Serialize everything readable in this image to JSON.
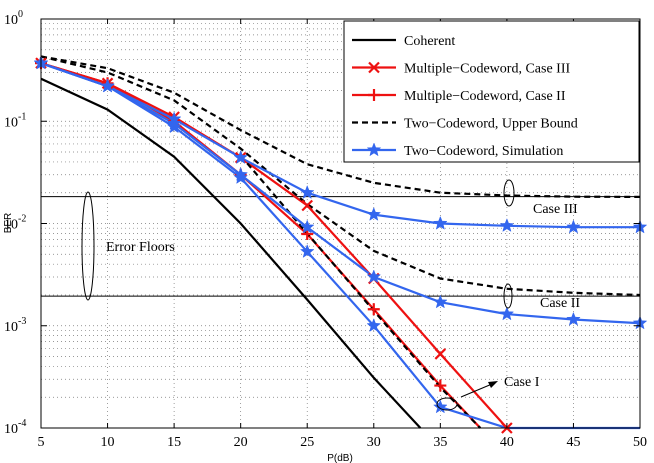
{
  "chart_data": {
    "type": "line",
    "title": "",
    "xlabel": "P(dB)",
    "ylabel": "BER",
    "xlim": [
      5,
      50
    ],
    "ylim": [
      0.0001,
      1
    ],
    "yscale": "log",
    "grid": true,
    "legend_position": "top-right",
    "x_ticks": [
      "5",
      "10",
      "15",
      "20",
      "25",
      "30",
      "35",
      "40",
      "45",
      "50"
    ],
    "y_ticks": [
      {
        "base": "10",
        "exp": "0"
      },
      {
        "base": "10",
        "exp": "-1"
      },
      {
        "base": "10",
        "exp": "-2"
      },
      {
        "base": "10",
        "exp": "-3"
      },
      {
        "base": "10",
        "exp": "-4"
      }
    ],
    "series": [
      {
        "name": "Coherent",
        "color": "#000000",
        "dash": "solid",
        "marker": "none",
        "x": [
          5,
          10,
          15,
          20,
          25,
          30,
          33.5
        ],
        "y": [
          0.26,
          0.13,
          0.045,
          0.01,
          0.0018,
          0.00031,
          0.0001
        ]
      },
      {
        "name": "Multiple−Codeword, Case III",
        "color": "#ee1111",
        "dash": "solid",
        "marker": "x",
        "x": [
          5,
          10,
          15,
          20,
          25,
          30,
          35,
          40
        ],
        "y": [
          0.37,
          0.235,
          0.11,
          0.044,
          0.015,
          0.0029,
          0.00053,
          0.0001
        ]
      },
      {
        "name": "Multiple−Codeword, Case II",
        "color": "#ee1111",
        "dash": "solid",
        "marker": "plus",
        "x": [
          5,
          10,
          15,
          20,
          25,
          30,
          35,
          38
        ],
        "y": [
          0.37,
          0.235,
          0.1,
          0.03,
          0.0079,
          0.00145,
          0.00026,
          0.0001
        ]
      },
      {
        "name": "Two−Codeword, Upper Bound",
        "color": "#000000",
        "dash": "dashed",
        "marker": "none",
        "x": [
          5,
          10,
          15,
          20,
          25,
          30,
          35,
          40,
          45,
          50
        ],
        "y": [
          0.43,
          0.33,
          0.19,
          0.082,
          0.038,
          0.025,
          0.02,
          0.0188,
          0.0183,
          0.0182
        ],
        "x2": [
          5,
          10,
          15,
          20,
          25,
          30,
          35,
          40,
          45,
          50
        ],
        "y2": [
          0.43,
          0.3,
          0.16,
          0.054,
          0.0155,
          0.0054,
          0.0029,
          0.0023,
          0.0021,
          0.002
        ],
        "x3": [
          20,
          25,
          30,
          35,
          38
        ],
        "y3": [
          0.046,
          0.008,
          0.0014,
          0.00025,
          0.0001
        ]
      },
      {
        "name": "Two−Codeword, Simulation",
        "color": "#3366ee",
        "dash": "solid",
        "marker": "star",
        "x": [
          5,
          10,
          15,
          20,
          25,
          30,
          35,
          40,
          45,
          50
        ],
        "y": [
          0.37,
          0.22,
          0.088,
          0.028,
          0.0053,
          0.001,
          0.00016,
          0.0001,
          0.0001,
          0.0001
        ],
        "x2": [
          5,
          10,
          15,
          20,
          25,
          30,
          35,
          40,
          45,
          50
        ],
        "y2": [
          0.37,
          0.22,
          0.105,
          0.044,
          0.02,
          0.0122,
          0.01,
          0.0095,
          0.0092,
          0.0092
        ],
        "x3": [
          5,
          10,
          15,
          20,
          25,
          30,
          35,
          40,
          45,
          50
        ],
        "y3": [
          0.37,
          0.22,
          0.095,
          0.03,
          0.0092,
          0.003,
          0.0017,
          0.0013,
          0.00115,
          0.00106
        ]
      }
    ],
    "floor_lines": [
      {
        "label": "Case III",
        "y": 0.0183
      },
      {
        "label": "Case II",
        "y": 0.00195
      }
    ],
    "annotations": {
      "error_floors": "Error Floors",
      "case3": "Case III",
      "case2": "Case II",
      "case1": "Case I"
    }
  }
}
